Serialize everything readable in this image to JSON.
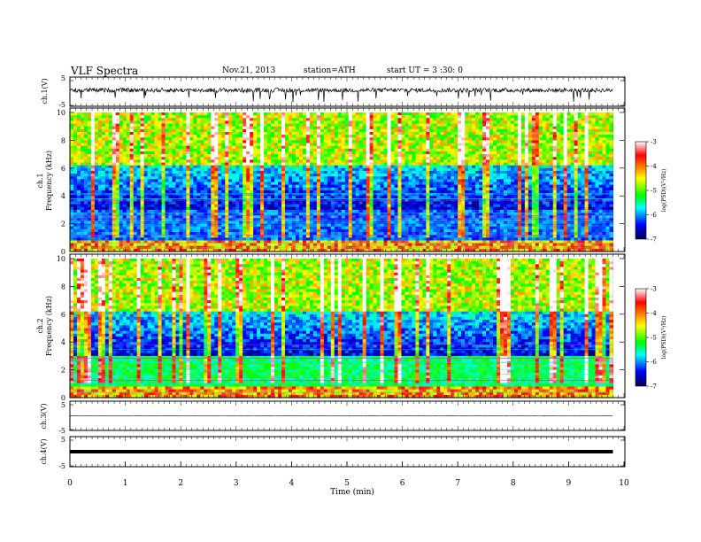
{
  "header": {
    "title": "VLF Spectra",
    "date": "Nov.21, 2013",
    "station": "station=ATH",
    "start": "start  UT =  3 :30: 0"
  },
  "chart_data": {
    "type": "heatmap",
    "xlabel": "Time  (min)",
    "xlim": [
      0,
      10
    ],
    "x_ticks": [
      "0",
      "1",
      "2",
      "3",
      "4",
      "5",
      "6",
      "7",
      "8",
      "9",
      "10"
    ],
    "data_end_min": 9.8,
    "colorscale": {
      "label": "log(PSD)(V²/Hz)",
      "range": [
        -7,
        -3
      ],
      "ticks": [
        "-3",
        "-4",
        "-5",
        "-6",
        "-7"
      ],
      "stops": [
        "#000050",
        "#0000ff",
        "#00ffff",
        "#00ff00",
        "#ffff00",
        "#ff8000",
        "#ff0000",
        "#ffffff"
      ]
    },
    "panels": [
      {
        "name": "ch.1(V)",
        "kind": "waveform",
        "ylim": [
          -5,
          5
        ],
        "ticks": [
          "5",
          "-5"
        ],
        "mean": 0.5,
        "amplitude": 1.5
      },
      {
        "name": "ch.1",
        "kind": "spectrogram",
        "ylabel": "Frequency  (kHz)",
        "ylim": [
          0,
          10
        ],
        "ticks": [
          "10",
          "8",
          "6",
          "4",
          "2",
          "0"
        ]
      },
      {
        "name": "ch.2",
        "kind": "spectrogram",
        "ylabel": "Frequency  (kHz)",
        "ylim": [
          0,
          10
        ],
        "ticks": [
          "10",
          "8",
          "6",
          "4",
          "2",
          "0"
        ]
      },
      {
        "name": "ch.3(V)",
        "kind": "waveform",
        "ylim": [
          -5,
          5
        ],
        "ticks": [
          "5",
          "-5"
        ],
        "mean": 0.0,
        "amplitude": 0.1
      },
      {
        "name": "ch.4(V)",
        "kind": "waveform",
        "ylim": [
          -5,
          5
        ],
        "ticks": [
          "5",
          "-5"
        ],
        "mean": 0.0,
        "amplitude": 0.3
      }
    ]
  }
}
